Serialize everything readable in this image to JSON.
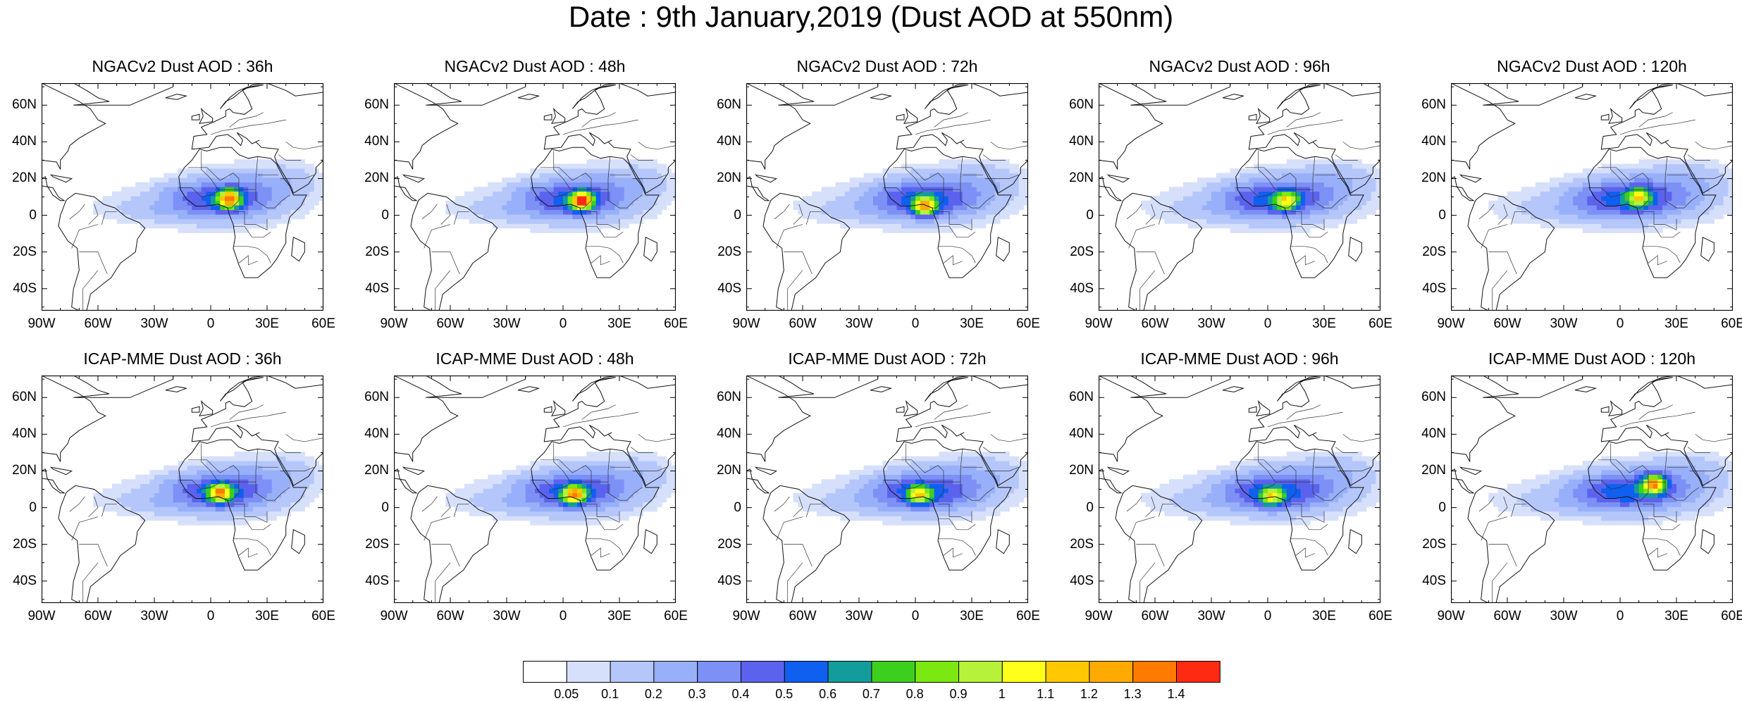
{
  "title": "Date : 9th January,2019 (Dust AOD at 550nm)",
  "panels": [
    {
      "title": "NGACv2 Dust AOD : 36h",
      "hotspot": [
        10,
        9
      ],
      "peak": 0.9,
      "spread": 1.0
    },
    {
      "title": "NGACv2 Dust AOD : 48h",
      "hotspot": [
        10,
        8
      ],
      "peak": 1.0,
      "spread": 1.0
    },
    {
      "title": "NGACv2 Dust AOD : 72h",
      "hotspot": [
        5,
        5
      ],
      "peak": 0.85,
      "spread": 1.05
    },
    {
      "title": "NGACv2 Dust AOD : 96h",
      "hotspot": [
        10,
        8
      ],
      "peak": 0.6,
      "spread": 1.1
    },
    {
      "title": "NGACv2 Dust AOD : 120h",
      "hotspot": [
        10,
        10
      ],
      "peak": 0.6,
      "spread": 1.15
    },
    {
      "title": "ICAP-MME Dust AOD : 36h",
      "hotspot": [
        5,
        8
      ],
      "peak": 0.85,
      "spread": 1.0
    },
    {
      "title": "ICAP-MME Dust AOD : 48h",
      "hotspot": [
        6,
        7
      ],
      "peak": 0.85,
      "spread": 1.0
    },
    {
      "title": "ICAP-MME Dust AOD : 72h",
      "hotspot": [
        2,
        7
      ],
      "peak": 0.65,
      "spread": 1.05
    },
    {
      "title": "ICAP-MME Dust AOD : 96h",
      "hotspot": [
        2,
        6
      ],
      "peak": 0.6,
      "spread": 1.1
    },
    {
      "title": "ICAP-MME Dust AOD : 120h",
      "hotspot": [
        18,
        13
      ],
      "peak": 0.9,
      "spread": 1.15
    }
  ],
  "axes": {
    "lat_labels": [
      "60N",
      "40N",
      "20N",
      "0",
      "20S",
      "40S"
    ],
    "lat_values": [
      60,
      40,
      20,
      0,
      -20,
      -40
    ],
    "lon_labels": [
      "90W",
      "60W",
      "30W",
      "0",
      "30E",
      "60E"
    ],
    "lon_values": [
      -90,
      -60,
      -30,
      0,
      30,
      60
    ],
    "lon_range": [
      -90,
      60
    ],
    "lat_range": [
      -52,
      72
    ]
  },
  "colorbar": {
    "labels": [
      "0.05",
      "0.1",
      "0.2",
      "0.3",
      "0.4",
      "0.5",
      "0.6",
      "0.7",
      "0.8",
      "0.9",
      "1",
      "1.1",
      "1.2",
      "1.3",
      "1.4"
    ],
    "colors": [
      "#ffffff",
      "#d6e0fb",
      "#b5c6fa",
      "#98b0fa",
      "#7d90f5",
      "#5b63ee",
      "#0f5ff0",
      "#139c9c",
      "#3ccf1e",
      "#7ce812",
      "#b6f23a",
      "#ffff1a",
      "#ffc800",
      "#ffaa00",
      "#ff7a00",
      "#ff2a12"
    ]
  }
}
